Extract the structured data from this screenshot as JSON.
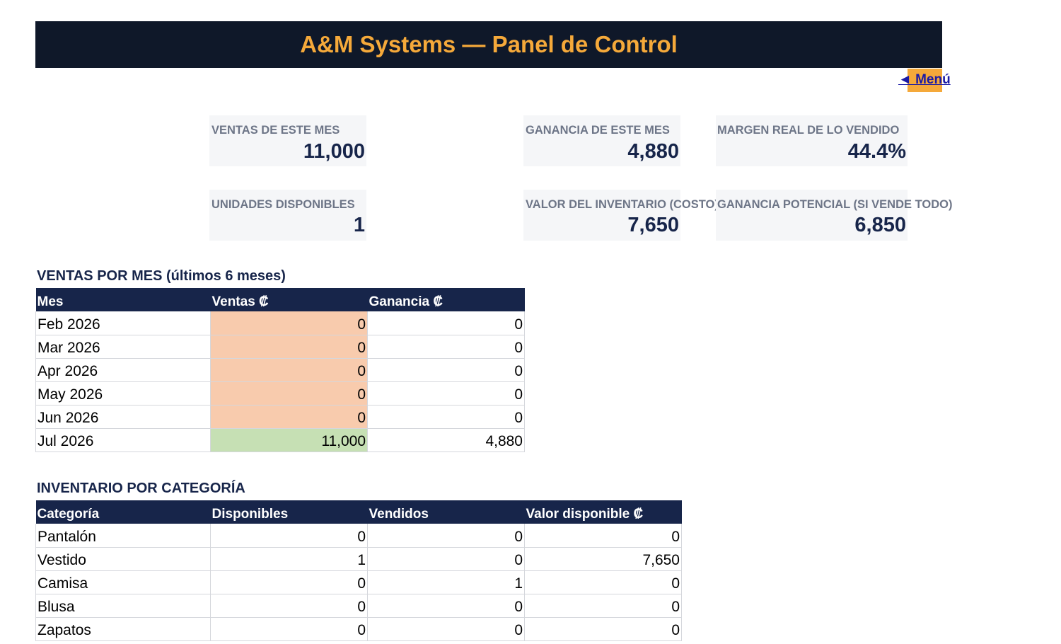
{
  "header": {
    "title": "A&M Systems — Panel de Control",
    "menu_link": "◄ Menú"
  },
  "kpis": [
    {
      "label": "VENTAS DE ESTE MES",
      "value": "11,000"
    },
    {
      "label": "GANANCIA DE ESTE MES",
      "value": "4,880"
    },
    {
      "label": "MARGEN REAL DE LO VENDIDO",
      "value": "44.4%"
    },
    {
      "label": "UNIDADES DISPONIBLES",
      "value": "1"
    },
    {
      "label": "VALOR DEL INVENTARIO (COSTO)",
      "value": "7,650"
    },
    {
      "label": "GANANCIA POTENCIAL (SI VENDE TODO)",
      "value": "6,850"
    }
  ],
  "sales_by_month": {
    "title": "VENTAS POR MES (últimos 6 meses)",
    "headers": [
      "Mes",
      "Ventas ₡",
      "Ganancia ₡"
    ],
    "rows": [
      {
        "month": "Feb 2026",
        "sales": "0",
        "profit": "0"
      },
      {
        "month": "Mar 2026",
        "sales": "0",
        "profit": "0"
      },
      {
        "month": "Apr 2026",
        "sales": "0",
        "profit": "0"
      },
      {
        "month": "May 2026",
        "sales": "0",
        "profit": "0"
      },
      {
        "month": "Jun 2026",
        "sales": "0",
        "profit": "0"
      },
      {
        "month": "Jul 2026",
        "sales": "11,000",
        "profit": "4,880"
      }
    ]
  },
  "inventory_by_category": {
    "title": "INVENTARIO POR CATEGORÍA",
    "headers": [
      "Categoría",
      "Disponibles",
      "Vendidos",
      "Valor disponible ₡"
    ],
    "rows": [
      {
        "category": "Pantalón",
        "available": "0",
        "sold": "0",
        "value": "0"
      },
      {
        "category": "Vestido",
        "available": "1",
        "sold": "0",
        "value": "7,650"
      },
      {
        "category": "Camisa",
        "available": "0",
        "sold": "1",
        "value": "0"
      },
      {
        "category": "Blusa",
        "available": "0",
        "sold": "0",
        "value": "0"
      },
      {
        "category": "Zapatos",
        "available": "0",
        "sold": "0",
        "value": "0"
      }
    ]
  },
  "colors": {
    "header_bg": "#0f1829",
    "accent": "#f5a93a",
    "navy": "#17254a",
    "sales_zero": "#f8cbad",
    "sales_positive": "#c6e0b4"
  }
}
